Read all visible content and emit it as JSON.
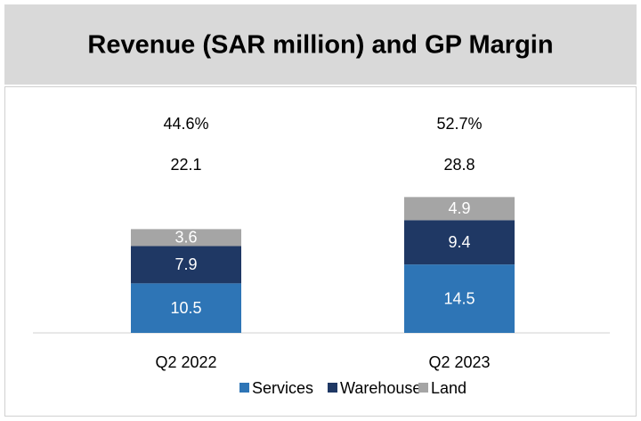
{
  "chart_data": {
    "type": "stacked_bar",
    "title": "Revenue (SAR million) and GP Margin",
    "categories": [
      "Q2 2022",
      "Q2 2023"
    ],
    "series": [
      {
        "name": "Services",
        "color": "#2e75b6",
        "values": [
          10.5,
          14.5
        ]
      },
      {
        "name": "Warehouse",
        "color": "#1f3864",
        "values": [
          7.9,
          9.4
        ]
      },
      {
        "name": "Land",
        "color": "#a5a5a5",
        "values": [
          3.6,
          4.9
        ]
      }
    ],
    "totals": [
      22.1,
      28.8
    ],
    "gp_margin": {
      "values": [
        44.6,
        52.7
      ],
      "value_labels": [
        "44.6%",
        "52.7%"
      ]
    },
    "ylim": [
      0,
      50
    ]
  }
}
